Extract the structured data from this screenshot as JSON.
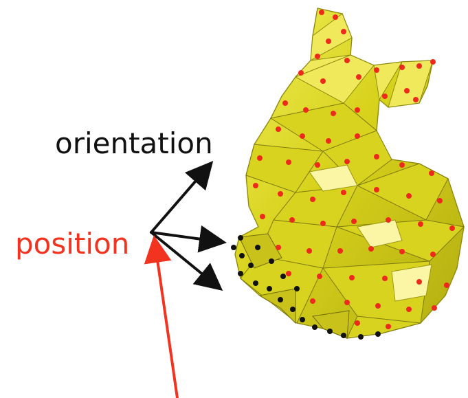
{
  "labels": {
    "orientation": "orientation",
    "position": "position"
  },
  "colors": {
    "orientation": "#111111",
    "position": "#f2331f",
    "mesh_fill": "#d9d51a",
    "mesh_highlight": "#f4f06a",
    "mesh_shadow": "#8f8a0d",
    "vertex_red": "#ee2a1c",
    "vertex_black": "#111111"
  },
  "icons": {
    "mesh": "triangulated-bunny-mesh",
    "vertices": "sampled-surface-points"
  }
}
